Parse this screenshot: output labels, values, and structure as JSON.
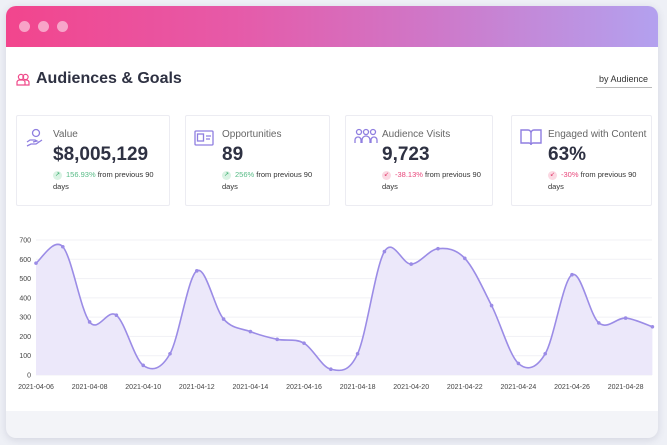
{
  "header": {
    "title": "Audiences & Goals",
    "filter_label": "by Audience"
  },
  "colors": {
    "accent": "#9b8ce6",
    "fill": "#ece8fa",
    "up": "#57bb86",
    "down": "#e8467a",
    "title_gradient": [
      "#f2458d",
      "#b3a1ef"
    ]
  },
  "cards": [
    {
      "icon": "hand-coin-icon",
      "label": "Value",
      "value": "$8,005,129",
      "change": "156.93%",
      "direction": "up",
      "suffix": "from previous 90 days"
    },
    {
      "icon": "id-card-icon",
      "label": "Opportunities",
      "value": "89",
      "change": "256%",
      "direction": "up",
      "suffix": "from previous 90 days"
    },
    {
      "icon": "users-icon",
      "label": "Audience Visits",
      "value": "9,723",
      "change": "-38.13%",
      "direction": "down",
      "suffix": "from previous 90 days"
    },
    {
      "icon": "book-open-icon",
      "label": "Engaged with Content",
      "value": "63%",
      "change": "-30%",
      "direction": "down",
      "suffix": "from previous 90 days"
    }
  ],
  "chart_data": {
    "type": "area",
    "x": [
      "2021-04-06",
      "2021-04-07",
      "2021-04-08",
      "2021-04-09",
      "2021-04-10",
      "2021-04-11",
      "2021-04-12",
      "2021-04-13",
      "2021-04-14",
      "2021-04-15",
      "2021-04-16",
      "2021-04-17",
      "2021-04-18",
      "2021-04-19",
      "2021-04-20",
      "2021-04-21",
      "2021-04-22",
      "2021-04-23",
      "2021-04-24",
      "2021-04-25",
      "2021-04-26",
      "2021-04-27",
      "2021-04-28",
      "2021-04-29"
    ],
    "values": [
      580,
      665,
      275,
      310,
      50,
      110,
      540,
      290,
      225,
      185,
      165,
      30,
      110,
      640,
      575,
      655,
      605,
      360,
      60,
      110,
      520,
      270,
      295,
      250
    ],
    "x_tick_labels": [
      "2021-04-06",
      "2021-04-08",
      "2021-04-10",
      "2021-04-12",
      "2021-04-14",
      "2021-04-16",
      "2021-04-18",
      "2021-04-20",
      "2021-04-22",
      "2021-04-24",
      "2021-04-26",
      "2021-04-28"
    ],
    "y_ticks": [
      0,
      100,
      200,
      300,
      400,
      500,
      600,
      700
    ],
    "ylim": [
      0,
      700
    ],
    "grid": true,
    "smooth": true
  }
}
